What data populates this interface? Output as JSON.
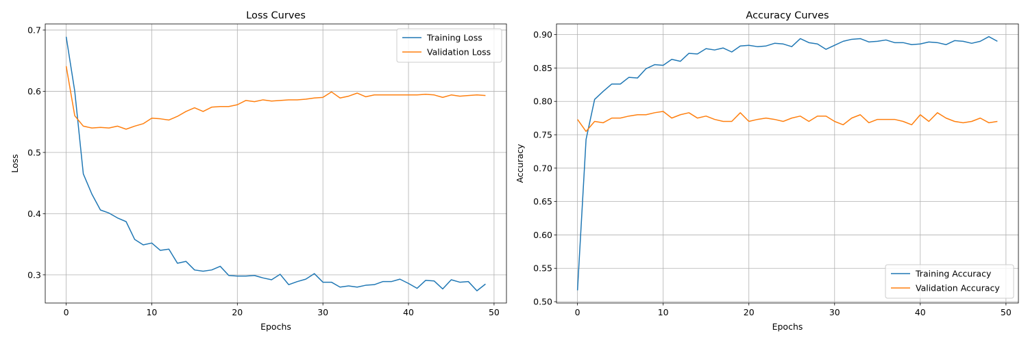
{
  "chart_data": [
    {
      "type": "line",
      "title": "Loss Curves",
      "xlabel": "Epochs",
      "ylabel": "Loss",
      "xlim": [
        -2.45,
        51.45
      ],
      "ylim": [
        0.254,
        0.71
      ],
      "xticks": [
        0,
        10,
        20,
        30,
        40,
        50
      ],
      "yticks": [
        0.3,
        0.4,
        0.5,
        0.6,
        0.7
      ],
      "ytick_labels": [
        "0.3",
        "0.4",
        "0.5",
        "0.6",
        "0.7"
      ],
      "grid": true,
      "legend_position": "upper-right",
      "x": [
        0,
        1,
        2,
        3,
        4,
        5,
        6,
        7,
        8,
        9,
        10,
        11,
        12,
        13,
        14,
        15,
        16,
        17,
        18,
        19,
        20,
        21,
        22,
        23,
        24,
        25,
        26,
        27,
        28,
        29,
        30,
        31,
        32,
        33,
        34,
        35,
        36,
        37,
        38,
        39,
        40,
        41,
        42,
        43,
        44,
        45,
        46,
        47,
        48,
        49
      ],
      "series": [
        {
          "name": "Training Loss",
          "color": "#1f77b4",
          "values": [
            0.689,
            0.6,
            0.465,
            0.432,
            0.406,
            0.401,
            0.393,
            0.387,
            0.358,
            0.349,
            0.352,
            0.34,
            0.342,
            0.319,
            0.322,
            0.308,
            0.306,
            0.308,
            0.314,
            0.299,
            0.298,
            0.298,
            0.299,
            0.295,
            0.292,
            0.301,
            0.284,
            0.289,
            0.293,
            0.302,
            0.288,
            0.288,
            0.28,
            0.282,
            0.28,
            0.283,
            0.284,
            0.289,
            0.289,
            0.293,
            0.286,
            0.278,
            0.291,
            0.29,
            0.277,
            0.292,
            0.288,
            0.289,
            0.274,
            0.285
          ]
        },
        {
          "name": "Validation Loss",
          "color": "#ff7f0e",
          "values": [
            0.641,
            0.56,
            0.543,
            0.54,
            0.541,
            0.54,
            0.543,
            0.538,
            0.543,
            0.547,
            0.556,
            0.555,
            0.553,
            0.559,
            0.567,
            0.573,
            0.567,
            0.574,
            0.575,
            0.575,
            0.578,
            0.585,
            0.583,
            0.586,
            0.584,
            0.585,
            0.586,
            0.586,
            0.587,
            0.589,
            0.59,
            0.599,
            0.589,
            0.592,
            0.597,
            0.591,
            0.594,
            0.594,
            0.594,
            0.594,
            0.594,
            0.594,
            0.595,
            0.594,
            0.59,
            0.594,
            0.592,
            0.593,
            0.594,
            0.593
          ]
        }
      ]
    },
    {
      "type": "line",
      "title": "Accuracy Curves",
      "xlabel": "Epochs",
      "ylabel": "Accuracy",
      "xlim": [
        -2.45,
        51.45
      ],
      "ylim": [
        0.498,
        0.916
      ],
      "xticks": [
        0,
        10,
        20,
        30,
        40,
        50
      ],
      "yticks": [
        0.5,
        0.55,
        0.6,
        0.65,
        0.7,
        0.75,
        0.8,
        0.85,
        0.9
      ],
      "ytick_labels": [
        "0.50",
        "0.55",
        "0.60",
        "0.65",
        "0.70",
        "0.75",
        "0.80",
        "0.85",
        "0.90"
      ],
      "grid": true,
      "legend_position": "lower-right",
      "x": [
        0,
        1,
        2,
        3,
        4,
        5,
        6,
        7,
        8,
        9,
        10,
        11,
        12,
        13,
        14,
        15,
        16,
        17,
        18,
        19,
        20,
        21,
        22,
        23,
        24,
        25,
        26,
        27,
        28,
        29,
        30,
        31,
        32,
        33,
        34,
        35,
        36,
        37,
        38,
        39,
        40,
        41,
        42,
        43,
        44,
        45,
        46,
        47,
        48,
        49
      ],
      "series": [
        {
          "name": "Training Accuracy",
          "color": "#1f77b4",
          "values": [
            0.517,
            0.743,
            0.803,
            0.815,
            0.826,
            0.826,
            0.836,
            0.835,
            0.849,
            0.855,
            0.854,
            0.863,
            0.86,
            0.872,
            0.871,
            0.879,
            0.877,
            0.88,
            0.874,
            0.883,
            0.884,
            0.882,
            0.883,
            0.887,
            0.886,
            0.882,
            0.894,
            0.888,
            0.886,
            0.878,
            0.884,
            0.89,
            0.893,
            0.894,
            0.889,
            0.89,
            0.892,
            0.888,
            0.888,
            0.885,
            0.886,
            0.889,
            0.888,
            0.885,
            0.891,
            0.89,
            0.887,
            0.89,
            0.897,
            0.89
          ]
        },
        {
          "name": "Validation Accuracy",
          "color": "#ff7f0e",
          "values": [
            0.773,
            0.755,
            0.77,
            0.768,
            0.775,
            0.775,
            0.778,
            0.78,
            0.78,
            0.783,
            0.785,
            0.775,
            0.78,
            0.783,
            0.775,
            0.778,
            0.773,
            0.77,
            0.77,
            0.783,
            0.77,
            0.773,
            0.775,
            0.773,
            0.77,
            0.775,
            0.778,
            0.77,
            0.778,
            0.778,
            0.77,
            0.765,
            0.775,
            0.78,
            0.768,
            0.773,
            0.773,
            0.773,
            0.77,
            0.765,
            0.78,
            0.77,
            0.783,
            0.775,
            0.77,
            0.768,
            0.77,
            0.775,
            0.768,
            0.77
          ]
        }
      ]
    }
  ]
}
